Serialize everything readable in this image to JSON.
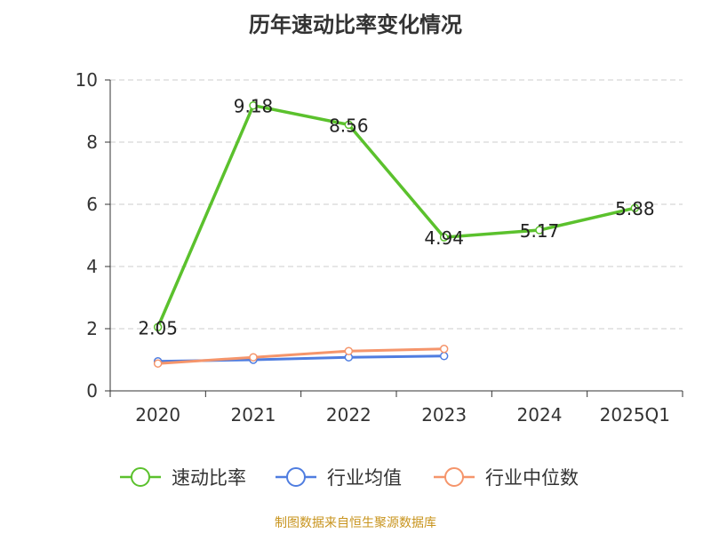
{
  "chart_data": {
    "type": "line",
    "title": "历年速动比率变化情况",
    "categories": [
      "2020",
      "2021",
      "2022",
      "2023",
      "2024",
      "2025Q1"
    ],
    "ylim": [
      0,
      10
    ],
    "yticks": [
      0,
      2,
      4,
      6,
      8,
      10
    ],
    "grid": true,
    "legend_position": "bottom",
    "series": [
      {
        "name": "速动比率",
        "color": "#5bc12d",
        "values": [
          2.05,
          9.18,
          8.56,
          4.94,
          5.17,
          5.88
        ],
        "labels": [
          "2.05",
          "9.18",
          "8.56",
          "4.94",
          "5.17",
          "5.88"
        ]
      },
      {
        "name": "行业均值",
        "color": "#4f7de0",
        "values": [
          0.95,
          1.0,
          1.08,
          1.12,
          null,
          null
        ]
      },
      {
        "name": "行业中位数",
        "color": "#f5956b",
        "values": [
          0.88,
          1.08,
          1.28,
          1.35,
          null,
          null
        ]
      }
    ]
  },
  "source_text": "制图数据来自恒生聚源数据库",
  "colors": {
    "source": "#c8941e",
    "axis": "#333333",
    "grid": "#cccccc"
  }
}
